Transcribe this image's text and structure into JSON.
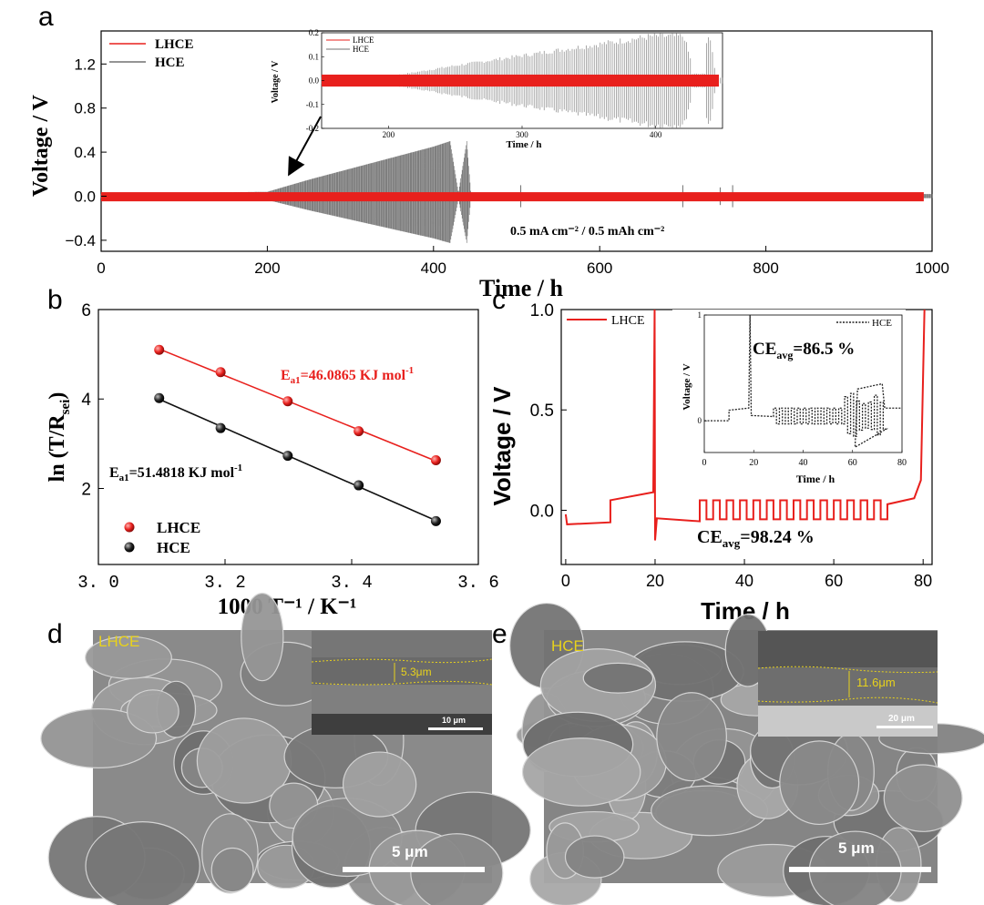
{
  "panels": {
    "a": "a",
    "b": "b",
    "c": "c",
    "d": "d",
    "e": "e"
  },
  "chart_data": [
    {
      "id": "a",
      "type": "line",
      "xlabel": "Time / h",
      "ylabel": "Voltage / V",
      "xlim": [
        0,
        1000
      ],
      "ylim": [
        -0.5,
        1.5
      ],
      "xticks": [
        0,
        200,
        400,
        600,
        800,
        1000
      ],
      "yticks": [
        -0.4,
        0.0,
        0.4,
        0.8,
        1.2
      ],
      "ytick_labels": [
        "−0.4",
        "0.0",
        "0.4",
        "0.8",
        "1.2"
      ],
      "annotation": "0.5 mA cm⁻² / 0.5 mAh cm⁻²",
      "legend": [
        "LHCE",
        "HCE"
      ],
      "colors": {
        "LHCE": "#e8201d",
        "HCE": "#707070"
      },
      "series": [
        {
          "name": "LHCE",
          "envelope": [
            [
              0,
              0.02
            ],
            [
              200,
              0.02
            ],
            [
              400,
              0.025
            ],
            [
              600,
              0.025
            ],
            [
              800,
              0.025
            ],
            [
              990,
              0.025
            ]
          ]
        },
        {
          "name": "HCE",
          "envelope": [
            [
              0,
              0.02
            ],
            [
              200,
              0.04
            ],
            [
              250,
              0.15
            ],
            [
              300,
              0.25
            ],
            [
              350,
              0.35
            ],
            [
              400,
              0.45
            ],
            [
              420,
              0.5
            ],
            [
              430,
              0.03
            ],
            [
              440,
              0.5
            ],
            [
              445,
              0.03
            ],
            [
              1000,
              0.02
            ]
          ]
        }
      ],
      "inset": {
        "xlabel": "Time / h",
        "ylabel": "Voltage / V",
        "xlim": [
          150,
          450
        ],
        "ylim": [
          -0.2,
          0.2
        ],
        "xticks": [
          200,
          300,
          400
        ],
        "yticks": [
          -0.2,
          -0.1,
          0.0,
          0.1,
          0.2
        ],
        "ytick_labels": [
          "-0.2",
          "-0.1",
          "0.0",
          "0.1",
          "0.2"
        ],
        "legend": [
          "LHCE",
          "HCE"
        ]
      }
    },
    {
      "id": "b",
      "type": "scatter",
      "xlabel": "1000 T⁻¹ / K⁻¹",
      "ylabel": "ln (T/R",
      "ylabel_sub": "sei",
      "ylabel_close": ")",
      "xlim": [
        3.0,
        3.6
      ],
      "ylim": [
        0.3,
        6
      ],
      "xticks": [
        3.0,
        3.2,
        3.4,
        3.6
      ],
      "xtick_labels": [
        "3. 0",
        "3. 2",
        "3. 4",
        "3. 6"
      ],
      "yticks": [
        2,
        4,
        6
      ],
      "legend": [
        "LHCE",
        "HCE"
      ],
      "colors": {
        "LHCE": "#e8201d",
        "HCE": "#111111"
      },
      "series": [
        {
          "name": "LHCE",
          "x": [
            3.096,
            3.193,
            3.299,
            3.411,
            3.533
          ],
          "y": [
            5.1,
            4.6,
            3.95,
            3.28,
            2.63
          ]
        },
        {
          "name": "HCE",
          "x": [
            3.096,
            3.193,
            3.299,
            3.411,
            3.533
          ],
          "y": [
            4.02,
            3.35,
            2.73,
            2.07,
            1.27
          ]
        }
      ],
      "annotations": [
        {
          "series": "LHCE",
          "prefix": "E",
          "sub": "a1",
          "text": "=46.0865 KJ mol",
          "sup": "-1"
        },
        {
          "series": "HCE",
          "prefix": "E",
          "sub": "a1",
          "text": "=51.4818 KJ mol",
          "sup": "-1"
        }
      ]
    },
    {
      "id": "c",
      "type": "line",
      "xlabel": "Time / h",
      "ylabel": "Voltage / V",
      "xlim": [
        -1,
        82
      ],
      "ylim": [
        -0.27,
        1.0
      ],
      "xticks": [
        0,
        20,
        40,
        60,
        80
      ],
      "yticks": [
        0.0,
        0.5,
        1.0
      ],
      "ytick_labels": [
        "0.0",
        "0.5",
        "1.0"
      ],
      "legend": [
        "LHCE"
      ],
      "colors": {
        "LHCE": "#e8201d",
        "HCE": "#222222"
      },
      "annotation": {
        "prefix": "CE",
        "sub": "avg",
        "text": "=98.24 %"
      },
      "series": [
        {
          "name": "LHCE",
          "description": "plating/stripping steps 30-72 h",
          "points": [
            [
              0,
              -0.06
            ],
            [
              10,
              -0.06
            ],
            [
              10,
              0.05
            ],
            [
              19.5,
              0.1
            ],
            [
              20,
              1.0
            ],
            [
              20,
              -0.15
            ],
            [
              20.5,
              -0.04
            ],
            [
              30,
              -0.05
            ],
            [
              30,
              0.05
            ],
            [
              80,
              0.08
            ],
            [
              80.5,
              1.0
            ]
          ]
        }
      ],
      "inset": {
        "xlabel": "Time / h",
        "ylabel": "Voltage / V",
        "xlim": [
          0,
          80
        ],
        "ylim": [
          -0.3,
          1
        ],
        "xticks": [
          0,
          20,
          40,
          60,
          80
        ],
        "yticks": [
          0,
          1
        ],
        "legend": [
          "HCE"
        ],
        "annotation": {
          "prefix": "CE",
          "sub": "avg",
          "text": "=86.5 %"
        }
      }
    }
  ],
  "sem": {
    "d": {
      "label": "LHCE",
      "scale": "5 μm",
      "inset_scale": "10 μm",
      "thickness": "5.3μm"
    },
    "e": {
      "label": "HCE",
      "scale": "5 μm",
      "inset_scale": "20 μm",
      "thickness": "11.6μm"
    }
  }
}
